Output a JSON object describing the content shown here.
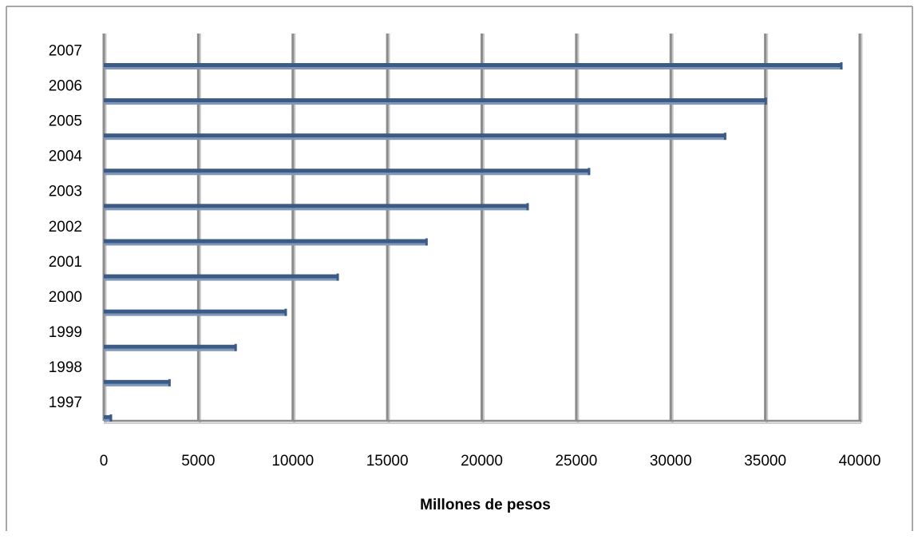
{
  "chart_data": {
    "type": "bar",
    "orientation": "horizontal",
    "categories": [
      "1997",
      "1998",
      "1999",
      "2000",
      "2001",
      "2002",
      "2003",
      "2004",
      "2005",
      "2006",
      "2007"
    ],
    "values": [
      400,
      3500,
      7000,
      9650,
      12400,
      17100,
      22450,
      25700,
      32900,
      35050,
      39050
    ],
    "xlabel": "Millones de pesos",
    "ylabel": "",
    "title": "",
    "xlim": [
      0,
      40000
    ],
    "xticks": [
      "0",
      "5000",
      "10000",
      "15000",
      "20000",
      "25000",
      "30000",
      "35000",
      "40000"
    ],
    "grid": "vertical",
    "legend": "none",
    "colors": {
      "bar": "#3b5a85",
      "bar_highlight": "#7f97b8",
      "grid": "#8c8c8c",
      "frame": "#8c8c8c"
    }
  }
}
